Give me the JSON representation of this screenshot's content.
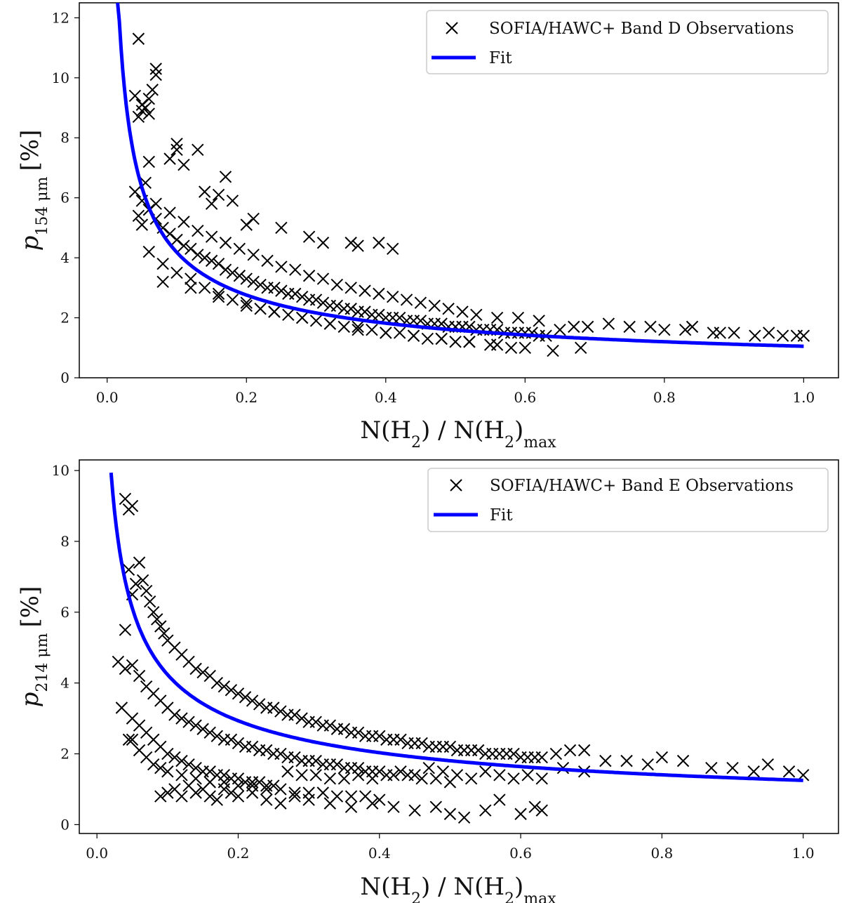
{
  "chart_data": [
    {
      "type": "scatter",
      "panel": "top",
      "xlabel": "N(H2) / N(H2)max",
      "ylabel": "p154μm [%]",
      "ylabel_main": "p",
      "ylabel_sub": "154 μm",
      "ylabel_unit": "[%]",
      "xlim": [
        -0.04,
        1.05
      ],
      "ylim": [
        0,
        12.5
      ],
      "xticks": [
        0.0,
        0.2,
        0.4,
        0.6,
        0.8,
        1.0
      ],
      "xtick_labels": [
        "0.0",
        "0.2",
        "0.4",
        "0.6",
        "0.8",
        "1.0"
      ],
      "yticks": [
        0,
        2,
        4,
        6,
        8,
        10,
        12
      ],
      "ytick_labels": [
        "0",
        "2",
        "4",
        "6",
        "8",
        "10",
        "12"
      ],
      "grid": false,
      "legend_position": "top-right",
      "series": [
        {
          "name": "SOFIA/HAWC+ Band D Observations",
          "kind": "scatter",
          "marker": "x",
          "color": "#000000",
          "x": [
            0.045,
            0.04,
            0.05,
            0.055,
            0.06,
            0.065,
            0.07,
            0.045,
            0.05,
            0.06,
            0.07,
            0.04,
            0.05,
            0.055,
            0.06,
            0.045,
            0.05,
            0.06,
            0.07,
            0.08,
            0.09,
            0.1,
            0.11,
            0.12,
            0.13,
            0.14,
            0.15,
            0.16,
            0.17,
            0.18,
            0.19,
            0.2,
            0.21,
            0.22,
            0.23,
            0.24,
            0.25,
            0.26,
            0.27,
            0.28,
            0.29,
            0.3,
            0.31,
            0.32,
            0.33,
            0.34,
            0.35,
            0.36,
            0.37,
            0.38,
            0.39,
            0.4,
            0.41,
            0.42,
            0.43,
            0.44,
            0.45,
            0.46,
            0.47,
            0.48,
            0.49,
            0.5,
            0.51,
            0.52,
            0.53,
            0.54,
            0.55,
            0.56,
            0.57,
            0.58,
            0.59,
            0.6,
            0.61,
            0.62,
            0.63,
            0.65,
            0.67,
            0.69,
            0.72,
            0.75,
            0.78,
            0.8,
            0.83,
            0.84,
            0.87,
            0.88,
            0.9,
            0.93,
            0.95,
            0.97,
            0.99,
            1.0,
            0.06,
            0.08,
            0.1,
            0.12,
            0.14,
            0.16,
            0.18,
            0.2,
            0.22,
            0.24,
            0.26,
            0.28,
            0.3,
            0.32,
            0.34,
            0.36,
            0.38,
            0.4,
            0.42,
            0.44,
            0.46,
            0.48,
            0.5,
            0.52,
            0.55,
            0.58,
            0.07,
            0.09,
            0.11,
            0.13,
            0.15,
            0.17,
            0.19,
            0.21,
            0.23,
            0.25,
            0.27,
            0.29,
            0.31,
            0.33,
            0.35,
            0.37,
            0.39,
            0.41,
            0.43,
            0.45,
            0.47,
            0.49,
            0.51,
            0.53,
            0.56,
            0.59,
            0.62,
            0.1,
            0.1,
            0.11,
            0.09,
            0.13,
            0.14,
            0.15,
            0.16,
            0.17,
            0.18,
            0.2,
            0.21,
            0.25,
            0.29,
            0.31,
            0.35,
            0.36,
            0.39,
            0.41,
            0.08,
            0.12,
            0.16,
            0.2,
            0.24,
            0.28,
            0.32,
            0.36,
            0.4,
            0.44,
            0.48,
            0.52,
            0.56,
            0.6,
            0.64,
            0.68
          ],
          "y": [
            11.3,
            9.4,
            9.1,
            9.0,
            8.8,
            9.6,
            10.3,
            8.7,
            8.9,
            9.3,
            10.1,
            6.2,
            5.9,
            6.5,
            7.2,
            5.4,
            5.1,
            5.6,
            5.3,
            5.0,
            4.8,
            4.6,
            4.4,
            4.3,
            4.1,
            4.0,
            3.9,
            3.8,
            3.6,
            3.5,
            3.4,
            3.3,
            3.2,
            3.1,
            3.0,
            3.0,
            2.9,
            2.8,
            2.8,
            2.7,
            2.6,
            2.6,
            2.5,
            2.4,
            2.4,
            2.3,
            2.3,
            2.2,
            2.2,
            2.1,
            2.1,
            2.0,
            2.0,
            2.0,
            1.9,
            1.9,
            1.9,
            1.8,
            1.8,
            1.8,
            1.7,
            1.7,
            1.7,
            1.7,
            1.6,
            1.6,
            1.6,
            1.6,
            1.5,
            1.5,
            1.5,
            1.5,
            1.5,
            1.4,
            1.4,
            1.6,
            1.7,
            1.7,
            1.8,
            1.7,
            1.7,
            1.6,
            1.6,
            1.7,
            1.5,
            1.5,
            1.5,
            1.4,
            1.5,
            1.4,
            1.4,
            1.4,
            4.2,
            3.8,
            3.5,
            3.3,
            3.0,
            2.8,
            2.6,
            2.5,
            2.3,
            2.2,
            2.1,
            2.0,
            1.9,
            1.8,
            1.7,
            1.7,
            1.6,
            1.5,
            1.5,
            1.4,
            1.3,
            1.3,
            1.2,
            1.2,
            1.1,
            1.0,
            5.8,
            5.5,
            5.2,
            4.9,
            4.7,
            4.5,
            4.3,
            4.1,
            3.9,
            3.7,
            3.6,
            3.4,
            3.3,
            3.1,
            3.0,
            2.9,
            2.8,
            2.7,
            2.6,
            2.5,
            2.4,
            2.3,
            2.2,
            2.1,
            2.0,
            2.0,
            1.9,
            7.8,
            7.6,
            7.1,
            7.3,
            7.6,
            6.2,
            5.8,
            6.1,
            6.7,
            5.9,
            5.1,
            5.3,
            5.0,
            4.7,
            4.5,
            4.5,
            4.4,
            4.5,
            4.3,
            3.2,
            3.0,
            2.7,
            2.4,
            2.2,
            2.0,
            1.8,
            1.6,
            1.5,
            1.4,
            1.3,
            1.2,
            1.1,
            1.0,
            0.9,
            1.0
          ]
        },
        {
          "name": "Fit",
          "kind": "line",
          "color": "#0000ff",
          "model": "p = 1.05 * x^-0.6",
          "x_range": [
            0.015,
            1.0
          ],
          "a": 1.05,
          "b": -0.6
        }
      ]
    },
    {
      "type": "scatter",
      "panel": "bottom",
      "xlabel": "N(H2) / N(H2)max",
      "ylabel": "p214μm [%]",
      "ylabel_main": "p",
      "ylabel_sub": "214 μm",
      "ylabel_unit": "[%]",
      "xlim": [
        -0.025,
        1.05
      ],
      "ylim": [
        -0.25,
        10.3
      ],
      "xticks": [
        0.0,
        0.2,
        0.4,
        0.6,
        0.8,
        1.0
      ],
      "xtick_labels": [
        "0.0",
        "0.2",
        "0.4",
        "0.6",
        "0.8",
        "1.0"
      ],
      "yticks": [
        0,
        2,
        4,
        6,
        8,
        10
      ],
      "ytick_labels": [
        "0",
        "2",
        "4",
        "6",
        "8",
        "10"
      ],
      "grid": false,
      "legend_position": "top-right",
      "series": [
        {
          "name": "SOFIA/HAWC+ Band E Observations",
          "kind": "scatter",
          "marker": "x",
          "color": "#000000",
          "x": [
            0.04,
            0.045,
            0.05,
            0.04,
            0.045,
            0.05,
            0.055,
            0.06,
            0.065,
            0.07,
            0.075,
            0.08,
            0.085,
            0.09,
            0.095,
            0.1,
            0.11,
            0.12,
            0.13,
            0.14,
            0.15,
            0.16,
            0.17,
            0.18,
            0.19,
            0.2,
            0.21,
            0.22,
            0.23,
            0.24,
            0.25,
            0.26,
            0.27,
            0.28,
            0.29,
            0.3,
            0.31,
            0.32,
            0.33,
            0.34,
            0.35,
            0.36,
            0.37,
            0.38,
            0.39,
            0.4,
            0.41,
            0.42,
            0.43,
            0.44,
            0.45,
            0.46,
            0.47,
            0.48,
            0.49,
            0.5,
            0.51,
            0.52,
            0.53,
            0.54,
            0.55,
            0.56,
            0.57,
            0.58,
            0.59,
            0.6,
            0.61,
            0.62,
            0.63,
            0.65,
            0.67,
            0.69,
            0.72,
            0.75,
            0.78,
            0.8,
            0.83,
            0.87,
            0.9,
            0.93,
            0.95,
            0.98,
            1.0,
            0.05,
            0.06,
            0.07,
            0.08,
            0.09,
            0.1,
            0.11,
            0.12,
            0.13,
            0.14,
            0.15,
            0.16,
            0.17,
            0.18,
            0.19,
            0.2,
            0.21,
            0.22,
            0.23,
            0.24,
            0.25,
            0.26,
            0.27,
            0.28,
            0.29,
            0.3,
            0.31,
            0.32,
            0.33,
            0.34,
            0.35,
            0.36,
            0.37,
            0.38,
            0.39,
            0.4,
            0.42,
            0.44,
            0.46,
            0.48,
            0.5,
            0.05,
            0.06,
            0.07,
            0.08,
            0.09,
            0.1,
            0.11,
            0.12,
            0.13,
            0.14,
            0.15,
            0.16,
            0.17,
            0.18,
            0.19,
            0.2,
            0.21,
            0.22,
            0.23,
            0.24,
            0.25,
            0.27,
            0.29,
            0.31,
            0.33,
            0.35,
            0.37,
            0.39,
            0.41,
            0.43,
            0.45,
            0.47,
            0.49,
            0.51,
            0.53,
            0.55,
            0.57,
            0.59,
            0.61,
            0.63,
            0.66,
            0.69,
            0.09,
            0.1,
            0.11,
            0.12,
            0.13,
            0.14,
            0.15,
            0.16,
            0.17,
            0.18,
            0.19,
            0.2,
            0.22,
            0.24,
            0.26,
            0.28,
            0.3,
            0.33,
            0.36,
            0.39,
            0.42,
            0.45,
            0.48,
            0.5,
            0.52,
            0.55,
            0.57,
            0.6,
            0.62,
            0.63,
            0.05,
            0.06,
            0.07,
            0.08,
            0.09,
            0.1,
            0.12,
            0.14,
            0.16,
            0.18,
            0.2,
            0.22,
            0.24,
            0.26,
            0.28,
            0.3,
            0.32,
            0.34,
            0.36,
            0.38,
            0.4,
            0.03,
            0.04,
            0.035,
            0.045
          ],
          "y": [
            9.2,
            8.9,
            9.0,
            5.5,
            7.2,
            6.5,
            6.8,
            7.4,
            6.9,
            6.6,
            6.3,
            6.0,
            5.8,
            5.6,
            5.4,
            5.2,
            5.0,
            4.8,
            4.6,
            4.4,
            4.3,
            4.2,
            4.0,
            3.9,
            3.8,
            3.7,
            3.6,
            3.5,
            3.4,
            3.3,
            3.3,
            3.2,
            3.1,
            3.1,
            3.0,
            2.9,
            2.9,
            2.8,
            2.8,
            2.7,
            2.7,
            2.6,
            2.6,
            2.5,
            2.5,
            2.5,
            2.4,
            2.4,
            2.4,
            2.3,
            2.3,
            2.3,
            2.2,
            2.2,
            2.2,
            2.2,
            2.1,
            2.1,
            2.1,
            2.1,
            2.0,
            2.0,
            2.0,
            2.0,
            2.0,
            1.9,
            1.9,
            1.9,
            1.9,
            2.0,
            2.1,
            2.1,
            1.8,
            1.8,
            1.7,
            1.9,
            1.8,
            1.6,
            1.6,
            1.5,
            1.7,
            1.5,
            1.4,
            4.5,
            4.2,
            3.9,
            3.7,
            3.5,
            3.3,
            3.1,
            3.0,
            2.9,
            2.8,
            2.7,
            2.6,
            2.5,
            2.4,
            2.4,
            2.3,
            2.2,
            2.2,
            2.1,
            2.1,
            2.0,
            2.0,
            1.9,
            1.9,
            1.8,
            1.8,
            1.8,
            1.7,
            1.7,
            1.7,
            1.6,
            1.6,
            1.6,
            1.5,
            1.5,
            1.5,
            1.4,
            1.4,
            1.3,
            1.3,
            1.2,
            3.0,
            2.8,
            2.6,
            2.4,
            2.2,
            2.0,
            1.9,
            1.8,
            1.7,
            1.6,
            1.5,
            1.5,
            1.4,
            1.4,
            1.3,
            1.3,
            1.2,
            1.2,
            1.2,
            1.1,
            1.1,
            1.5,
            1.4,
            1.4,
            1.3,
            1.3,
            1.4,
            1.3,
            1.4,
            1.5,
            1.4,
            1.6,
            1.5,
            1.4,
            1.3,
            1.5,
            1.4,
            1.3,
            1.4,
            1.3,
            1.6,
            1.5,
            0.8,
            0.9,
            1.0,
            0.8,
            1.1,
            0.9,
            1.0,
            0.8,
            0.7,
            1.0,
            0.9,
            0.8,
            0.9,
            0.7,
            0.6,
            0.8,
            0.7,
            0.6,
            0.5,
            0.6,
            0.5,
            0.4,
            0.5,
            0.3,
            0.2,
            0.4,
            0.7,
            0.3,
            0.5,
            0.4,
            2.4,
            2.1,
            1.9,
            1.7,
            1.6,
            1.5,
            1.4,
            1.3,
            1.2,
            1.2,
            1.1,
            1.1,
            1.0,
            1.0,
            0.9,
            0.9,
            0.9,
            0.8,
            0.8,
            0.8,
            0.7,
            4.6,
            4.4,
            3.3,
            2.4
          ]
        },
        {
          "name": "Fit",
          "kind": "line",
          "color": "#0000ff",
          "model": "p = 1.25 * x^-0.53",
          "x_range": [
            0.02,
            1.0
          ],
          "a": 1.25,
          "b": -0.53
        }
      ]
    }
  ]
}
